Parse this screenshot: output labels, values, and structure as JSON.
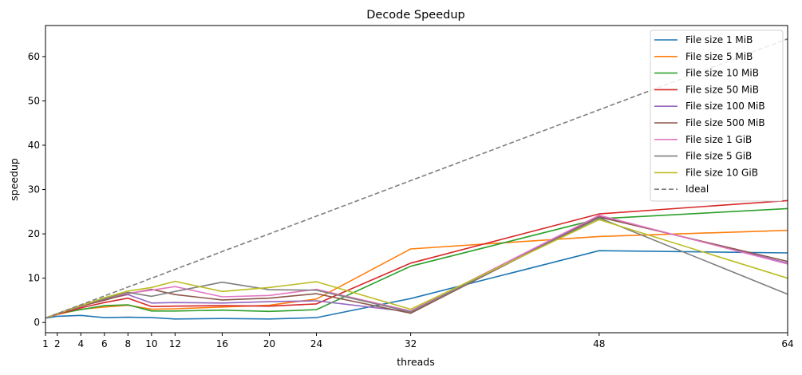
{
  "chart_data": {
    "type": "line",
    "title": "Decode Speedup",
    "xlabel": "threads",
    "ylabel": "speedup",
    "x": [
      1,
      2,
      4,
      6,
      8,
      10,
      12,
      16,
      20,
      24,
      32,
      48,
      64
    ],
    "xlim": [
      1,
      64
    ],
    "ylim": [
      -2.3,
      67
    ],
    "xticks": [
      1,
      2,
      4,
      6,
      8,
      10,
      12,
      16,
      20,
      24,
      32,
      48,
      64
    ],
    "yticks": [
      0,
      10,
      20,
      30,
      40,
      50,
      60
    ],
    "grid": false,
    "legend_position": "top-right",
    "series": [
      {
        "name": "File size 1 MiB",
        "color": "#1f77b4",
        "values": [
          1.0,
          1.4,
          1.6,
          1.1,
          1.2,
          1.1,
          0.8,
          0.9,
          0.8,
          1.1,
          5.4,
          16.2,
          15.7
        ]
      },
      {
        "name": "File size 5 MiB",
        "color": "#ff7f0e",
        "values": [
          1.0,
          1.8,
          3.0,
          3.5,
          3.9,
          3.0,
          3.1,
          3.5,
          3.9,
          5.3,
          16.6,
          19.4,
          20.8
        ]
      },
      {
        "name": "File size 10 MiB",
        "color": "#2ca02c",
        "values": [
          1.0,
          2.0,
          2.9,
          3.8,
          4.0,
          2.6,
          2.6,
          2.8,
          2.5,
          2.9,
          12.7,
          23.4,
          25.7
        ]
      },
      {
        "name": "File size 50 MiB",
        "color": "#d62728",
        "values": [
          1.0,
          1.9,
          3.3,
          4.5,
          5.5,
          3.6,
          3.7,
          3.8,
          3.7,
          4.2,
          13.4,
          24.5,
          27.5
        ]
      },
      {
        "name": "File size 100 MiB",
        "color": "#9467bd",
        "values": [
          1.0,
          2.0,
          3.6,
          5.2,
          6.3,
          4.4,
          4.5,
          4.4,
          4.7,
          4.9,
          2.4,
          24.0,
          13.4
        ]
      },
      {
        "name": "File size 500 MiB",
        "color": "#8c564b",
        "values": [
          1.0,
          2.0,
          3.7,
          5.0,
          6.5,
          7.5,
          6.3,
          5.1,
          5.5,
          6.5,
          2.1,
          23.8,
          13.8
        ]
      },
      {
        "name": "File size 1 GiB",
        "color": "#e377c2",
        "values": [
          1.0,
          2.0,
          3.8,
          5.5,
          6.6,
          7.3,
          8.1,
          5.8,
          6.1,
          7.5,
          2.6,
          24.2,
          13.2
        ]
      },
      {
        "name": "File size 5 GiB",
        "color": "#7f7f7f",
        "values": [
          1.0,
          2.0,
          3.9,
          5.4,
          6.8,
          5.9,
          7.0,
          9.1,
          7.4,
          7.3,
          2.4,
          23.6,
          6.4
        ]
      },
      {
        "name": "File size 10 GiB",
        "color": "#bcbd22",
        "values": [
          1.0,
          2.0,
          3.8,
          5.6,
          7.1,
          7.9,
          9.3,
          7.0,
          7.9,
          9.2,
          3.0,
          23.2,
          10.0
        ]
      },
      {
        "name": "Ideal",
        "color": "#7f7f7f",
        "dashed": true,
        "values": [
          1,
          2,
          4,
          6,
          8,
          10,
          12,
          16,
          20,
          24,
          32,
          48,
          64
        ]
      }
    ]
  }
}
